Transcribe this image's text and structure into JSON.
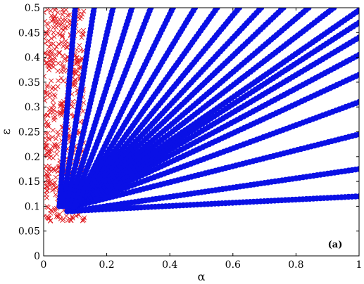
{
  "chart_data": {
    "type": "scatter",
    "title": "",
    "xlabel": "α",
    "ylabel": "ε",
    "panel_label": "(a)",
    "xlim": [
      0,
      1
    ],
    "ylim": [
      0,
      0.5
    ],
    "xticks": [
      0,
      0.2,
      0.4,
      0.6,
      0.8,
      1
    ],
    "xtick_labels": [
      "0",
      "0.2",
      "0.4",
      "0.6",
      "0.8",
      "1"
    ],
    "yticks": [
      0,
      0.05,
      0.1,
      0.15,
      0.2,
      0.25,
      0.3,
      0.35,
      0.4,
      0.45,
      0.5
    ],
    "ytick_labels": [
      "0",
      "0.05",
      "0.1",
      "0.15",
      "0.2",
      "0.25",
      "0.3",
      "0.35",
      "0.4",
      "0.45",
      "0.5"
    ],
    "grid": false,
    "legend": "none",
    "colors": {
      "circles": "#0a10e6",
      "crosses": "#e0191e"
    },
    "series": [
      {
        "marker": "circle",
        "color": "#0a10e6",
        "lines": [
          {
            "x": [
              0.075,
              1.0
            ],
            "y": [
              0.09,
              0.12
            ]
          },
          {
            "x": [
              0.09,
              1.0
            ],
            "y": [
              0.09,
              0.175
            ]
          },
          {
            "x": [
              0.1,
              1.0
            ],
            "y": [
              0.1,
              0.245
            ]
          },
          {
            "x": [
              0.1,
              1.0
            ],
            "y": [
              0.1,
              0.31
            ]
          },
          {
            "x": [
              0.1,
              1.0
            ],
            "y": [
              0.1,
              0.365
            ]
          },
          {
            "x": [
              0.1,
              1.0
            ],
            "y": [
              0.1,
              0.405
            ]
          },
          {
            "x": [
              0.1,
              1.0
            ],
            "y": [
              0.1,
              0.44
            ]
          },
          {
            "x": [
              0.1,
              1.0
            ],
            "y": [
              0.1,
              0.47
            ]
          },
          {
            "x": [
              0.1,
              1.0
            ],
            "y": [
              0.1,
              0.495
            ]
          },
          {
            "x": [
              0.1,
              0.92
            ],
            "y": [
              0.1,
              0.5
            ]
          },
          {
            "x": [
              0.1,
              0.84
            ],
            "y": [
              0.1,
              0.5
            ]
          },
          {
            "x": [
              0.1,
              0.76
            ],
            "y": [
              0.1,
              0.5
            ]
          },
          {
            "x": [
              0.1,
              0.69
            ],
            "y": [
              0.1,
              0.5
            ]
          },
          {
            "x": [
              0.1,
              0.62
            ],
            "y": [
              0.1,
              0.5
            ]
          },
          {
            "x": [
              0.1,
              0.55
            ],
            "y": [
              0.1,
              0.5
            ]
          },
          {
            "x": [
              0.1,
              0.48
            ],
            "y": [
              0.1,
              0.5
            ]
          },
          {
            "x": [
              0.1,
              0.41
            ],
            "y": [
              0.1,
              0.5
            ]
          },
          {
            "x": [
              0.09,
              0.34
            ],
            "y": [
              0.1,
              0.5
            ]
          },
          {
            "x": [
              0.08,
              0.28
            ],
            "y": [
              0.1,
              0.5
            ]
          },
          {
            "x": [
              0.07,
              0.22
            ],
            "y": [
              0.1,
              0.5
            ]
          },
          {
            "x": [
              0.06,
              0.16
            ],
            "y": [
              0.1,
              0.5
            ]
          },
          {
            "x": [
              0.05,
              0.1
            ],
            "y": [
              0.1,
              0.5
            ]
          }
        ]
      },
      {
        "marker": "cross",
        "color": "#e0191e",
        "region": {
          "x": [
            0.0,
            0.13
          ],
          "y": [
            0.07,
            0.5
          ]
        }
      }
    ]
  }
}
